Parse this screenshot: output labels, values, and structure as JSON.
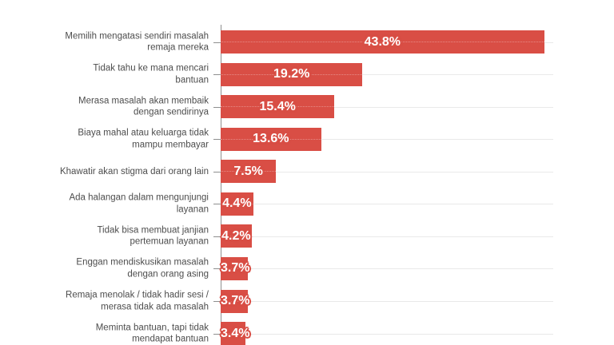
{
  "chart_data": {
    "type": "bar",
    "orientation": "horizontal",
    "grid": true,
    "legend": false,
    "value_suffix": "%",
    "xlim": [
      0,
      45
    ],
    "categories": [
      "Memilih mengatasi sendiri masalah remaja mereka",
      "Tidak tahu ke mana mencari bantuan",
      "Merasa masalah akan membaik dengan sendirinya",
      "Biaya mahal atau keluarga tidak mampu membayar",
      "Khawatir akan stigma dari orang lain",
      "Ada halangan dalam mengunjungi layanan",
      "Tidak bisa membuat janjian pertemuan layanan",
      "Enggan mendiskusikan masalah dengan orang asing",
      "Remaja menolak / tidak hadir sesi / merasa tidak ada masalah",
      "Meminta bantuan, tapi tidak mendapat bantuan"
    ],
    "values": [
      43.8,
      19.2,
      15.4,
      13.6,
      7.5,
      4.4,
      4.2,
      3.7,
      3.7,
      3.4
    ],
    "rows": [
      {
        "label_lines": [
          "Memilih mengatasi sendiri masalah",
          "remaja mereka"
        ],
        "value": 43.8,
        "value_label": "43.8%"
      },
      {
        "label_lines": [
          "Tidak tahu ke mana mencari",
          "bantuan"
        ],
        "value": 19.2,
        "value_label": "19.2%"
      },
      {
        "label_lines": [
          "Merasa masalah akan membaik",
          "dengan sendirinya"
        ],
        "value": 15.4,
        "value_label": "15.4%"
      },
      {
        "label_lines": [
          "Biaya mahal atau keluarga tidak",
          "mampu membayar"
        ],
        "value": 13.6,
        "value_label": "13.6%"
      },
      {
        "label_lines": [
          "Khawatir akan stigma dari orang lain"
        ],
        "value": 7.5,
        "value_label": "7.5%"
      },
      {
        "label_lines": [
          "Ada halangan dalam mengunjungi",
          "layanan"
        ],
        "value": 4.4,
        "value_label": "4.4%"
      },
      {
        "label_lines": [
          "Tidak bisa membuat janjian",
          "pertemuan layanan"
        ],
        "value": 4.2,
        "value_label": "4.2%"
      },
      {
        "label_lines": [
          "Enggan mendiskusikan masalah",
          "dengan orang asing"
        ],
        "value": 3.7,
        "value_label": "3.7%"
      },
      {
        "label_lines": [
          "Remaja menolak / tidak hadir sesi /",
          "merasa tidak ada masalah"
        ],
        "value": 3.7,
        "value_label": "3.7%"
      },
      {
        "label_lines": [
          "Meminta bantuan, tapi tidak",
          "mendapat bantuan"
        ],
        "value": 3.4,
        "value_label": "3.4%"
      }
    ],
    "colors": {
      "bar": "#d94e45",
      "value_text": "#ffffff",
      "category_text": "#4d4d4d",
      "axis": "#8f8f8f",
      "gridline": "#e9e9e9",
      "background": "#ffffff"
    }
  }
}
